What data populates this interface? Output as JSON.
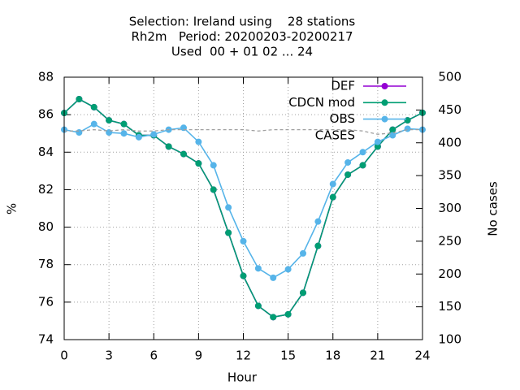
{
  "chart_data": {
    "type": "line",
    "title": [
      "Selection: Ireland using    28 stations",
      "Rh2m   Period: 20200203-20200217",
      "Used  00 + 01 02 ... 24"
    ],
    "xlabel": "Hour",
    "ylabel": "%",
    "y2label": "No cases",
    "x": [
      0,
      1,
      2,
      3,
      4,
      5,
      6,
      7,
      8,
      9,
      10,
      11,
      12,
      13,
      14,
      15,
      16,
      17,
      18,
      19,
      20,
      21,
      22,
      23,
      24
    ],
    "xlim": [
      0,
      24
    ],
    "xticks": [
      0,
      3,
      6,
      9,
      12,
      15,
      18,
      21,
      24
    ],
    "ylim": [
      74,
      88
    ],
    "yticks": [
      74,
      76,
      78,
      80,
      82,
      84,
      86,
      88
    ],
    "y2lim": [
      100,
      500
    ],
    "y2ticks": [
      100,
      150,
      200,
      250,
      300,
      350,
      400,
      450,
      500
    ],
    "grid": true,
    "legend": "top-right",
    "series": [
      {
        "name": "DEF",
        "color": "#9400d3",
        "points": true,
        "dashed": false,
        "values": [
          86.09,
          86.83,
          86.4,
          85.7,
          85.5,
          84.9,
          84.9,
          84.3,
          83.9,
          83.4,
          82.0,
          79.7,
          77.4,
          75.8,
          75.2,
          75.35,
          76.5,
          79.0,
          81.6,
          82.8,
          83.3,
          84.3,
          85.2,
          85.7,
          86.1
        ]
      },
      {
        "name": "CDCN mod",
        "color": "#009e73",
        "points": true,
        "dashed": false,
        "values": [
          86.09,
          86.83,
          86.4,
          85.7,
          85.5,
          84.9,
          84.9,
          84.3,
          83.9,
          83.4,
          82.0,
          79.7,
          77.4,
          75.8,
          75.2,
          75.35,
          76.5,
          79.0,
          81.6,
          82.8,
          83.3,
          84.3,
          85.2,
          85.7,
          86.1
        ]
      },
      {
        "name": "OBS",
        "color": "#56b4e9",
        "points": true,
        "dashed": false,
        "values": [
          85.2,
          85.05,
          85.5,
          85.05,
          85.0,
          84.8,
          84.95,
          85.2,
          85.3,
          84.55,
          83.3,
          81.05,
          79.25,
          77.8,
          77.3,
          77.75,
          78.6,
          80.3,
          82.3,
          83.45,
          84.0,
          84.55,
          84.9,
          85.25,
          85.2
        ]
      },
      {
        "name": "CASES",
        "color": "#a0a0a0",
        "points": false,
        "dashed": true,
        "axis": "y2",
        "values": [
          418,
          418,
          420,
          418,
          420,
          418,
          418,
          420,
          420,
          420,
          420,
          420,
          420,
          418,
          420,
          420,
          420,
          420,
          420,
          420,
          418,
          413,
          415,
          420,
          420
        ]
      }
    ]
  }
}
